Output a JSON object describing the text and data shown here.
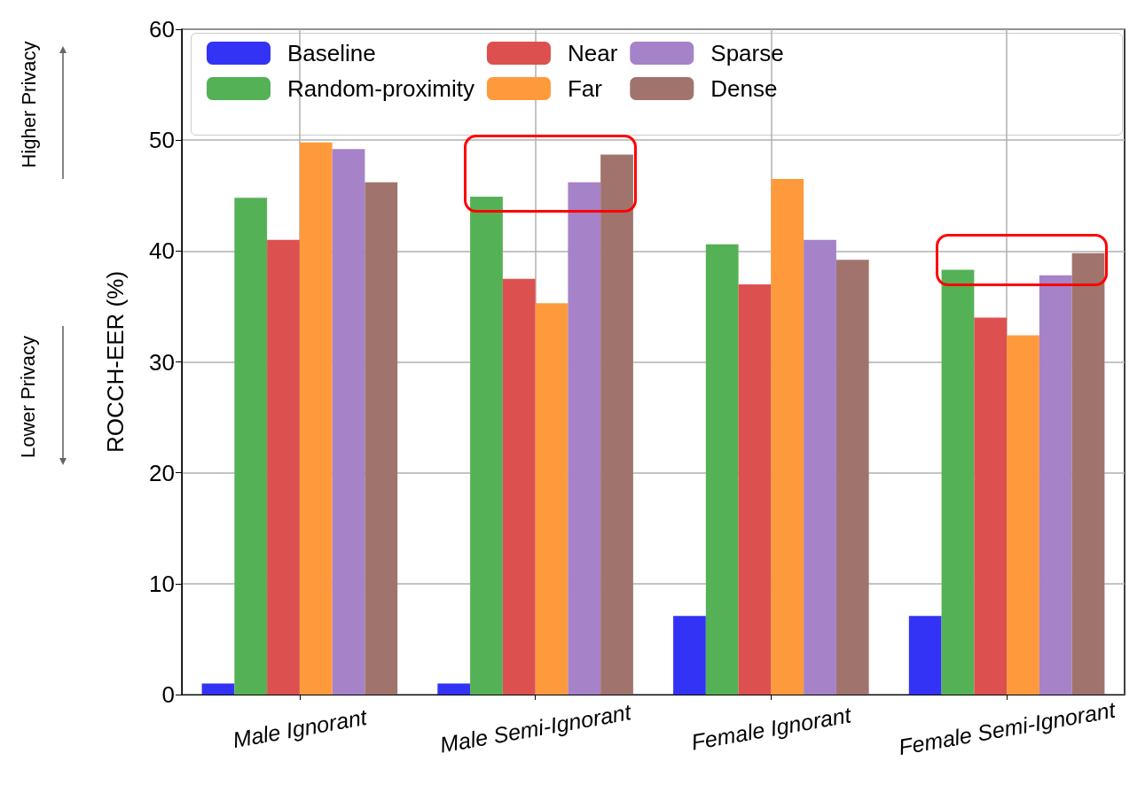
{
  "chart_data": {
    "type": "bar",
    "ylabel": "ROCCH-EER (%)",
    "categories": [
      "Male Ignorant",
      "Male Semi-Ignorant",
      "Female Ignorant",
      "Female Semi-Ignorant"
    ],
    "series": [
      {
        "name": "Baseline",
        "color": "#3333f5",
        "values": [
          1,
          1,
          7.1,
          7.1
        ]
      },
      {
        "name": "Random-proximity",
        "color": "#55b155",
        "values": [
          44.8,
          44.9,
          40.6,
          38.3
        ]
      },
      {
        "name": "Near",
        "color": "#dd5050",
        "values": [
          41,
          37.5,
          37,
          34
        ]
      },
      {
        "name": "Far",
        "color": "#ff9a3c",
        "values": [
          49.8,
          35.3,
          46.5,
          32.4
        ]
      },
      {
        "name": "Sparse",
        "color": "#a682c8",
        "values": [
          49.2,
          46.2,
          41,
          37.8
        ]
      },
      {
        "name": "Dense",
        "color": "#a0746d",
        "values": [
          46.2,
          48.7,
          39.2,
          39.8
        ]
      }
    ],
    "ylim": [
      0,
      60
    ],
    "yticks": [
      0,
      10,
      20,
      30,
      40,
      50,
      60
    ],
    "grid": true,
    "legend": "top",
    "annotations": [
      "Higher Privacy",
      "Lower Privacy"
    ]
  }
}
